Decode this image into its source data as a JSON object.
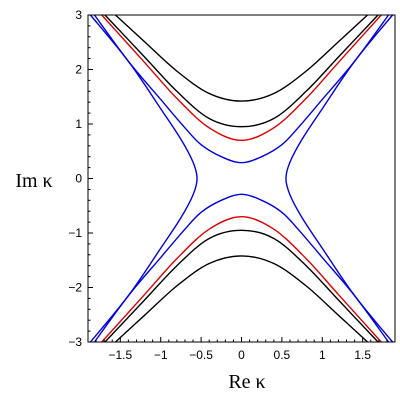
{
  "chart_data": {
    "type": "line",
    "xlabel": "Re κ",
    "ylabel": "Im κ",
    "xlim": [
      -1.9,
      1.9
    ],
    "ylim": [
      -3,
      3
    ],
    "grid": false,
    "x_ticks": [
      {
        "value": -1.5,
        "label": "−1.5"
      },
      {
        "value": -1,
        "label": "−1"
      },
      {
        "value": -0.5,
        "label": "−0.5"
      },
      {
        "value": 0,
        "label": "0"
      },
      {
        "value": 0.5,
        "label": "0.5"
      },
      {
        "value": 1,
        "label": "1"
      },
      {
        "value": 1.5,
        "label": "1.5"
      }
    ],
    "y_ticks": [
      {
        "value": 3,
        "label": "3"
      },
      {
        "value": 2,
        "label": "2"
      },
      {
        "value": 1,
        "label": "1"
      },
      {
        "value": 0,
        "label": "0"
      },
      {
        "value": -1,
        "label": "−1"
      },
      {
        "value": -2,
        "label": "−2"
      },
      {
        "value": -3,
        "label": "−3"
      }
    ],
    "colors": {
      "black": "#000000",
      "red": "#e00000",
      "blue": "#0000e0"
    },
    "series": [
      {
        "color": "#000000",
        "branches": [
          {
            "x": [
              -1.56,
              -1.2,
              -0.8,
              -0.4,
              0,
              0.4,
              0.8,
              1.2,
              1.56
            ],
            "y": [
              3.0,
              2.51,
              1.97,
              1.56,
              1.42,
              1.56,
              1.97,
              2.51,
              3.0
            ]
          },
          {
            "x": [
              -1.56,
              -1.2,
              -0.8,
              -0.4,
              0,
              0.4,
              0.8,
              1.2,
              1.56
            ],
            "y": [
              -3.0,
              -2.51,
              -1.97,
              -1.56,
              -1.42,
              -1.56,
              -1.97,
              -2.51,
              -3.0
            ]
          }
        ]
      },
      {
        "color": "#000000",
        "branches": [
          {
            "x": [
              -1.69,
              -1.2,
              -0.8,
              -0.4,
              0,
              0.4,
              0.8,
              1.2,
              1.69
            ],
            "y": [
              3.0,
              2.23,
              1.6,
              1.1,
              0.95,
              1.1,
              1.6,
              2.23,
              3.0
            ]
          },
          {
            "x": [
              -1.69,
              -1.2,
              -0.8,
              -0.4,
              0,
              0.4,
              0.8,
              1.2,
              1.69
            ],
            "y": [
              -3.0,
              -2.23,
              -1.6,
              -1.1,
              -0.95,
              -1.1,
              -1.6,
              -2.23,
              -3.0
            ]
          }
        ]
      },
      {
        "color": "#e00000",
        "branches": [
          {
            "x": [
              -1.73,
              -1.2,
              -0.8,
              -0.4,
              0,
              0.4,
              0.8,
              1.2,
              1.73
            ],
            "y": [
              3.0,
              2.13,
              1.47,
              0.93,
              0.7,
              0.93,
              1.47,
              2.13,
              3.0
            ]
          },
          {
            "x": [
              -1.73,
              -1.2,
              -0.8,
              -0.4,
              0,
              0.4,
              0.8,
              1.2,
              1.73
            ],
            "y": [
              -3.0,
              -2.13,
              -1.47,
              -0.93,
              -0.7,
              -0.93,
              -1.47,
              -2.13,
              -3.0
            ]
          }
        ]
      },
      {
        "color": "#0000e0",
        "branches": [
          {
            "x": [
              -1.82,
              -1.4,
              -1.0,
              -0.7,
              -0.5,
              -0.25,
              0,
              0.25,
              0.5,
              0.7,
              1.0,
              1.4,
              1.82
            ],
            "y": [
              3.0,
              2.15,
              1.45,
              0.93,
              0.62,
              0.4,
              0.29,
              0.4,
              0.62,
              0.93,
              1.45,
              2.15,
              3.0
            ]
          },
          {
            "x": [
              -1.82,
              -1.4,
              -1.0,
              -0.7,
              -0.5,
              -0.25,
              0,
              0.25,
              0.5,
              0.7,
              1.0,
              1.4,
              1.82
            ],
            "y": [
              -3.0,
              -2.15,
              -1.45,
              -0.93,
              -0.62,
              -0.4,
              -0.29,
              -0.4,
              -0.62,
              -0.93,
              -1.45,
              -2.15,
              -3.0
            ]
          },
          {
            "x": [
              -1.87,
              -1.4,
              -1.0,
              -0.75,
              -0.6,
              -0.55,
              -0.6,
              -0.75,
              -1.0,
              -1.4,
              -1.87
            ],
            "y": [
              3.0,
              2.15,
              1.28,
              0.72,
              0.3,
              0.0,
              -0.3,
              -0.72,
              -1.28,
              -2.15,
              -3.0
            ]
          },
          {
            "x": [
              1.87,
              1.4,
              1.0,
              0.75,
              0.6,
              0.55,
              0.6,
              0.75,
              1.0,
              1.4,
              1.87
            ],
            "y": [
              3.0,
              2.15,
              1.28,
              0.72,
              0.3,
              0.0,
              -0.3,
              -0.72,
              -1.28,
              -2.15,
              -3.0
            ]
          }
        ]
      }
    ]
  }
}
